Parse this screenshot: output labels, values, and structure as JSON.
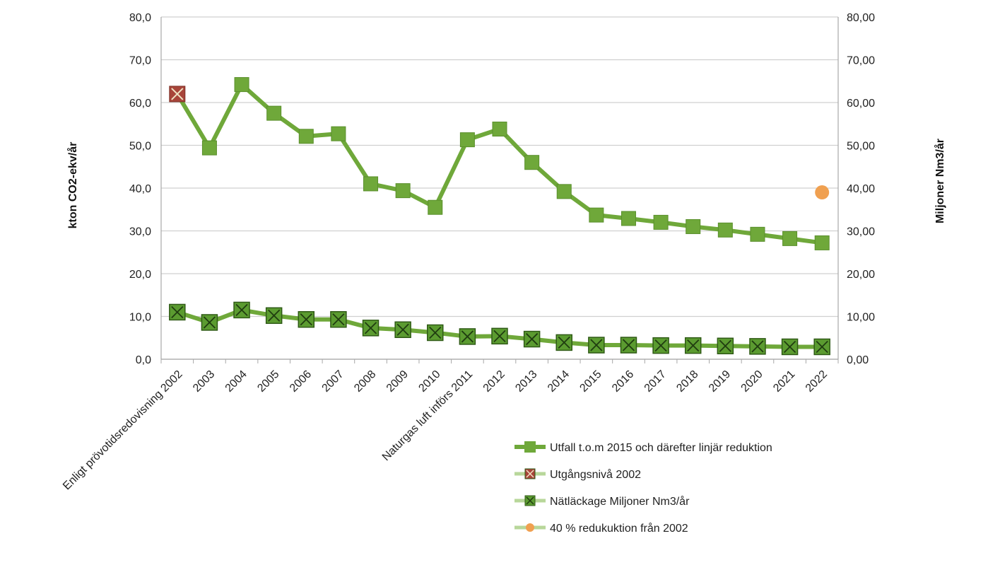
{
  "chart_data": {
    "type": "line",
    "categories": [
      "Enligt prövotidsredovisning 2002",
      "2003",
      "2004",
      "2005",
      "2006",
      "2007",
      "2008",
      "2009",
      "2010",
      "Naturgas luft införs 2011",
      "2012",
      "2013",
      "2014",
      "2015",
      "2016",
      "2017",
      "2018",
      "2019",
      "2020",
      "2021",
      "2022"
    ],
    "y_left": {
      "label": "kton CO2-ekv/år",
      "range": [
        0,
        80
      ],
      "step": 10,
      "tick_labels": [
        "0,0",
        "10,0",
        "20,0",
        "30,0",
        "40,0",
        "50,0",
        "60,0",
        "70,0",
        "80,0"
      ]
    },
    "y_right": {
      "label": "Miljoner Nm3/år",
      "range": [
        0,
        80
      ],
      "tick_labels": [
        "0,00",
        "10,00",
        "20,00",
        "30,00",
        "40,00",
        "50,00",
        "60,00",
        "70,00",
        "80,00"
      ]
    },
    "grid": true,
    "legend_position": "bottom-right",
    "series": [
      {
        "name": "Utfall  t.o.m 2015 och därefter linjär reduktion",
        "axis": "left",
        "marker": "square",
        "color": "#6fa83a",
        "values": [
          62.0,
          49.4,
          64.2,
          57.5,
          52.1,
          52.7,
          41.0,
          39.4,
          35.5,
          51.3,
          53.8,
          46.0,
          39.2,
          33.7,
          32.9,
          32.0,
          31.0,
          30.2,
          29.2,
          28.2,
          27.2
        ]
      },
      {
        "name": "Utgångsnivå 2002",
        "axis": "left",
        "marker": "square-x",
        "color": "#b04a3c",
        "values": [
          62.0,
          null,
          null,
          null,
          null,
          null,
          null,
          null,
          null,
          null,
          null,
          null,
          null,
          null,
          null,
          null,
          null,
          null,
          null,
          null,
          null
        ]
      },
      {
        "name": "Nätläckage Miljoner Nm3/år",
        "axis": "right",
        "marker": "square-x",
        "color": "#4e8a2a",
        "values": [
          11.0,
          8.6,
          11.5,
          10.2,
          9.3,
          9.3,
          7.3,
          6.9,
          6.2,
          5.3,
          5.4,
          4.7,
          3.9,
          3.3,
          3.3,
          3.2,
          3.2,
          3.1,
          3.0,
          2.9,
          2.9
        ]
      },
      {
        "name": "40 % redukuktion från 2002",
        "axis": "right",
        "marker": "circle",
        "color": "#f0a050",
        "values": [
          null,
          null,
          null,
          null,
          null,
          null,
          null,
          null,
          null,
          null,
          null,
          null,
          null,
          null,
          null,
          null,
          null,
          null,
          null,
          null,
          39.0
        ]
      }
    ]
  }
}
